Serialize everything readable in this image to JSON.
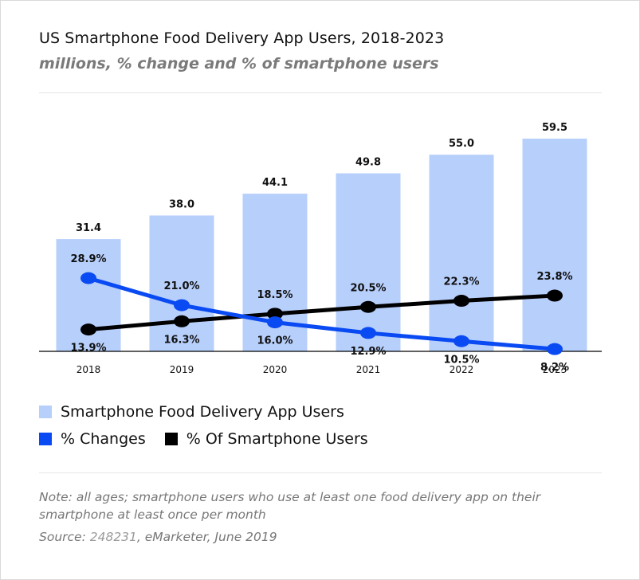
{
  "header": {
    "title": "US Smartphone Food Delivery App Users, 2018-2023",
    "subtitle": "millions, % change and % of smartphone users"
  },
  "colors": {
    "bar": "#b7cffb",
    "change_line": "#0a4af3",
    "share_line": "#000000",
    "axis": "#000000"
  },
  "chart_data": {
    "type": "bar",
    "categories": [
      "2018",
      "2019",
      "2020",
      "2021",
      "2022",
      "2023"
    ],
    "series": [
      {
        "name": "Smartphone Food Delivery App Users",
        "kind": "bar",
        "values": [
          31.4,
          38.0,
          44.1,
          49.8,
          55.0,
          59.5
        ],
        "labels": [
          "31.4",
          "38.0",
          "44.1",
          "49.8",
          "55.0",
          "59.5"
        ],
        "unit": "millions"
      },
      {
        "name": "% Changes",
        "kind": "line",
        "values": [
          28.9,
          21.0,
          16.0,
          12.9,
          10.5,
          8.2
        ],
        "labels": [
          "28.9%",
          "21.0%",
          "16.0%",
          "12.9%",
          "10.5%",
          "8.2%"
        ],
        "unit": "%"
      },
      {
        "name": "% Of Smartphone Users",
        "kind": "line",
        "values": [
          13.9,
          16.3,
          18.5,
          20.5,
          22.3,
          23.8
        ],
        "labels": [
          "13.9%",
          "16.3%",
          "18.5%",
          "20.5%",
          "22.3%",
          "23.8%"
        ],
        "unit": "%"
      }
    ],
    "title": "US Smartphone Food Delivery App Users, 2018-2023",
    "xlabel": "",
    "ylabel": "",
    "grid": false,
    "legend_position": "bottom-left"
  },
  "legend": {
    "bars_label": "Smartphone Food Delivery App Users",
    "change_label": "% Changes",
    "share_label": "% Of Smartphone Users"
  },
  "footer": {
    "note": "Note: all ages; smartphone users who use at least one food delivery app on their smartphone at least once per month",
    "source_prefix": "Source: ",
    "source_id": "248231",
    "source_rest": ", eMarketer, June 2019"
  }
}
